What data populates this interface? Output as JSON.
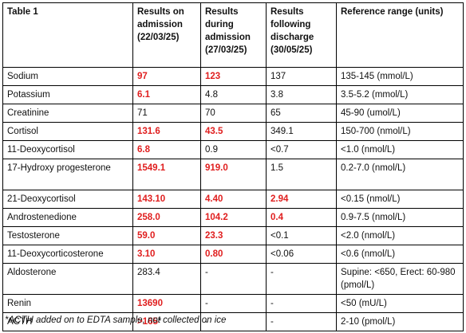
{
  "table": {
    "headers": [
      "Table 1",
      "Results on admission (22/03/25)",
      "Results during admission (27/03/25)",
      "Results following discharge (30/05/25)",
      "Reference range (units)"
    ],
    "rows": [
      {
        "analyte": "Sodium",
        "admission": "97",
        "during": "123",
        "discharge": "137",
        "reference": "135-145 (mmol/L)",
        "flags": [
          true,
          true,
          false
        ]
      },
      {
        "analyte": "Potassium",
        "admission": "6.1",
        "during": "4.8",
        "discharge": "3.8",
        "reference": "3.5-5.2 (mmol/L)",
        "flags": [
          true,
          false,
          false
        ]
      },
      {
        "analyte": "Creatinine",
        "admission": "71",
        "during": "70",
        "discharge": "65",
        "reference": "45-90 (umol/L)",
        "flags": [
          false,
          false,
          false
        ]
      },
      {
        "analyte": "Cortisol",
        "admission": "131.6",
        "during": "43.5",
        "discharge": "349.1",
        "reference": "150-700 (nmol/L)",
        "flags": [
          true,
          true,
          false
        ]
      },
      {
        "analyte": "11-Deoxycortisol",
        "admission": "6.8",
        "during": "0.9",
        "discharge": "<0.7",
        "reference": "<1.0 (nmol/L)",
        "flags": [
          true,
          false,
          false
        ]
      },
      {
        "analyte": "17-Hydroxy progesterone",
        "admission": "1549.1",
        "during": "919.0",
        "discharge": "1.5",
        "reference": "0.2-7.0 (nmol/L)",
        "flags": [
          true,
          true,
          false
        ]
      },
      {
        "analyte": "21-Deoxycortisol",
        "admission": "143.10",
        "during": "4.40",
        "discharge": "2.94",
        "reference": "<0.15 (nmol/L)",
        "flags": [
          true,
          true,
          true
        ]
      },
      {
        "analyte": "Androstenedione",
        "admission": "258.0",
        "during": "104.2",
        "discharge": "0.4",
        "reference": "0.9-7.5 (nmol/L)",
        "flags": [
          true,
          true,
          true
        ]
      },
      {
        "analyte": "Testosterone",
        "admission": "59.0",
        "during": "23.3",
        "discharge": "<0.1",
        "reference": "<2.0 (nmol/L)",
        "flags": [
          true,
          true,
          false
        ]
      },
      {
        "analyte": "11-Deoxycorticosterone",
        "admission": "3.10",
        "during": "0.80",
        "discharge": "<0.06",
        "reference": "<0.6 (nmol/L)",
        "flags": [
          true,
          true,
          false
        ]
      },
      {
        "analyte": "Aldosterone",
        "admission": "283.4",
        "during": "-",
        "discharge": "-",
        "reference": "Supine: <650, Erect: 60-980 (pmol/L)",
        "flags": [
          false,
          false,
          false
        ]
      },
      {
        "analyte": "Renin",
        "admission": "13690",
        "during": "-",
        "discharge": "-",
        "reference": "<50 (mU/L)",
        "flags": [
          true,
          false,
          false
        ]
      },
      {
        "analyte": "ACTH",
        "admission": ">165",
        "admission_suffix": "*",
        "during": "-",
        "discharge": "-",
        "reference": "2-10     (pmol/L)",
        "flags": [
          true,
          false,
          false
        ]
      }
    ]
  },
  "footnote": "*ACTH added on to EDTA sample, not collected on ice",
  "colors": {
    "abnormal": "#e01e1e"
  }
}
